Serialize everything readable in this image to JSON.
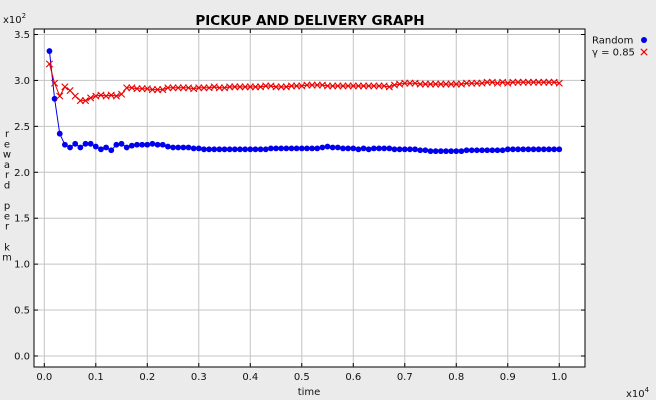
{
  "chart_data": {
    "type": "line",
    "title": "PICKUP AND DELIVERY GRAPH",
    "xlabel": "time",
    "ylabel": "reward per km",
    "ylabel_chars": [
      "r",
      "e",
      "w",
      "a",
      "r",
      "d",
      "",
      "p",
      "e",
      "r",
      "",
      "k",
      "m"
    ],
    "x_multiplier": {
      "base": "x10",
      "exp": "4"
    },
    "y_multiplier": {
      "base": "x10",
      "exp": "2"
    },
    "xlim": [
      -0.02,
      1.05
    ],
    "ylim": [
      -0.12,
      3.56
    ],
    "x_ticks": [
      0.0,
      0.1,
      0.2,
      0.3,
      0.4,
      0.5,
      0.6,
      0.7,
      0.8,
      0.9,
      1.0
    ],
    "x_tick_labels": [
      "0.0",
      "0.1",
      "0.2",
      "0.3",
      "0.4",
      "0.5",
      "0.6",
      "0.7",
      "0.8",
      "0.9",
      "1.0"
    ],
    "y_ticks": [
      0.0,
      0.5,
      1.0,
      1.5,
      2.0,
      2.5,
      3.0,
      3.5
    ],
    "y_tick_labels": [
      "0.0",
      "0.5",
      "1.0",
      "1.5",
      "2.0",
      "2.5",
      "3.0",
      "3.5"
    ],
    "grid": true,
    "legend_position": "top-right outside",
    "series": [
      {
        "name": "Random",
        "color": "#0000ee",
        "marker": "circle",
        "x": [
          0.01,
          0.02,
          0.03,
          0.04,
          0.05,
          0.06,
          0.07,
          0.08,
          0.09,
          0.1,
          0.11,
          0.12,
          0.13,
          0.14,
          0.15,
          0.16,
          0.17,
          0.18,
          0.19,
          0.2,
          0.21,
          0.22,
          0.23,
          0.24,
          0.25,
          0.26,
          0.27,
          0.28,
          0.29,
          0.3,
          0.31,
          0.32,
          0.33,
          0.34,
          0.35,
          0.36,
          0.37,
          0.38,
          0.39,
          0.4,
          0.41,
          0.42,
          0.43,
          0.44,
          0.45,
          0.46,
          0.47,
          0.48,
          0.49,
          0.5,
          0.51,
          0.52,
          0.53,
          0.54,
          0.55,
          0.56,
          0.57,
          0.58,
          0.59,
          0.6,
          0.61,
          0.62,
          0.63,
          0.64,
          0.65,
          0.66,
          0.67,
          0.68,
          0.69,
          0.7,
          0.71,
          0.72,
          0.73,
          0.74,
          0.75,
          0.76,
          0.77,
          0.78,
          0.79,
          0.8,
          0.81,
          0.82,
          0.83,
          0.84,
          0.85,
          0.86,
          0.87,
          0.88,
          0.89,
          0.9,
          0.91,
          0.92,
          0.93,
          0.94,
          0.95,
          0.96,
          0.97,
          0.98,
          0.99,
          1.0
        ],
        "y": [
          3.32,
          2.8,
          2.42,
          2.3,
          2.27,
          2.31,
          2.27,
          2.31,
          2.31,
          2.28,
          2.25,
          2.27,
          2.24,
          2.3,
          2.31,
          2.27,
          2.29,
          2.3,
          2.3,
          2.3,
          2.31,
          2.3,
          2.3,
          2.28,
          2.27,
          2.27,
          2.27,
          2.27,
          2.26,
          2.26,
          2.25,
          2.25,
          2.25,
          2.25,
          2.25,
          2.25,
          2.25,
          2.25,
          2.25,
          2.25,
          2.25,
          2.25,
          2.25,
          2.26,
          2.26,
          2.26,
          2.26,
          2.26,
          2.26,
          2.26,
          2.26,
          2.26,
          2.26,
          2.27,
          2.28,
          2.27,
          2.27,
          2.26,
          2.26,
          2.26,
          2.25,
          2.26,
          2.25,
          2.26,
          2.26,
          2.26,
          2.26,
          2.25,
          2.25,
          2.25,
          2.25,
          2.25,
          2.24,
          2.24,
          2.23,
          2.23,
          2.23,
          2.23,
          2.23,
          2.23,
          2.23,
          2.24,
          2.24,
          2.24,
          2.24,
          2.24,
          2.24,
          2.24,
          2.24,
          2.25,
          2.25,
          2.25,
          2.25,
          2.25,
          2.25,
          2.25,
          2.25,
          2.25,
          2.25,
          2.25
        ]
      },
      {
        "name": "γ = 0.85",
        "color": "#ee0000",
        "marker": "x",
        "x": [
          0.01,
          0.02,
          0.03,
          0.04,
          0.05,
          0.06,
          0.07,
          0.08,
          0.09,
          0.1,
          0.11,
          0.12,
          0.13,
          0.14,
          0.15,
          0.16,
          0.17,
          0.18,
          0.19,
          0.2,
          0.21,
          0.22,
          0.23,
          0.24,
          0.25,
          0.26,
          0.27,
          0.28,
          0.29,
          0.3,
          0.31,
          0.32,
          0.33,
          0.34,
          0.35,
          0.36,
          0.37,
          0.38,
          0.39,
          0.4,
          0.41,
          0.42,
          0.43,
          0.44,
          0.45,
          0.46,
          0.47,
          0.48,
          0.49,
          0.5,
          0.51,
          0.52,
          0.53,
          0.54,
          0.55,
          0.56,
          0.57,
          0.58,
          0.59,
          0.6,
          0.61,
          0.62,
          0.63,
          0.64,
          0.65,
          0.66,
          0.67,
          0.68,
          0.69,
          0.7,
          0.71,
          0.72,
          0.73,
          0.74,
          0.75,
          0.76,
          0.77,
          0.78,
          0.79,
          0.8,
          0.81,
          0.82,
          0.83,
          0.84,
          0.85,
          0.86,
          0.87,
          0.88,
          0.89,
          0.9,
          0.91,
          0.92,
          0.93,
          0.94,
          0.95,
          0.96,
          0.97,
          0.98,
          0.99,
          1.0
        ],
        "y": [
          3.18,
          2.97,
          2.83,
          2.93,
          2.89,
          2.83,
          2.78,
          2.78,
          2.81,
          2.83,
          2.84,
          2.83,
          2.84,
          2.83,
          2.85,
          2.92,
          2.92,
          2.91,
          2.91,
          2.91,
          2.9,
          2.9,
          2.9,
          2.92,
          2.92,
          2.92,
          2.92,
          2.92,
          2.91,
          2.92,
          2.92,
          2.92,
          2.93,
          2.92,
          2.92,
          2.93,
          2.93,
          2.93,
          2.93,
          2.93,
          2.93,
          2.93,
          2.94,
          2.94,
          2.93,
          2.93,
          2.93,
          2.94,
          2.94,
          2.94,
          2.95,
          2.95,
          2.95,
          2.95,
          2.94,
          2.94,
          2.94,
          2.94,
          2.94,
          2.94,
          2.94,
          2.94,
          2.94,
          2.94,
          2.94,
          2.94,
          2.93,
          2.95,
          2.96,
          2.97,
          2.97,
          2.97,
          2.96,
          2.96,
          2.96,
          2.96,
          2.96,
          2.96,
          2.96,
          2.96,
          2.96,
          2.97,
          2.97,
          2.97,
          2.97,
          2.98,
          2.98,
          2.97,
          2.98,
          2.97,
          2.98,
          2.98,
          2.98,
          2.98,
          2.98,
          2.98,
          2.98,
          2.98,
          2.98,
          2.97
        ]
      }
    ]
  }
}
